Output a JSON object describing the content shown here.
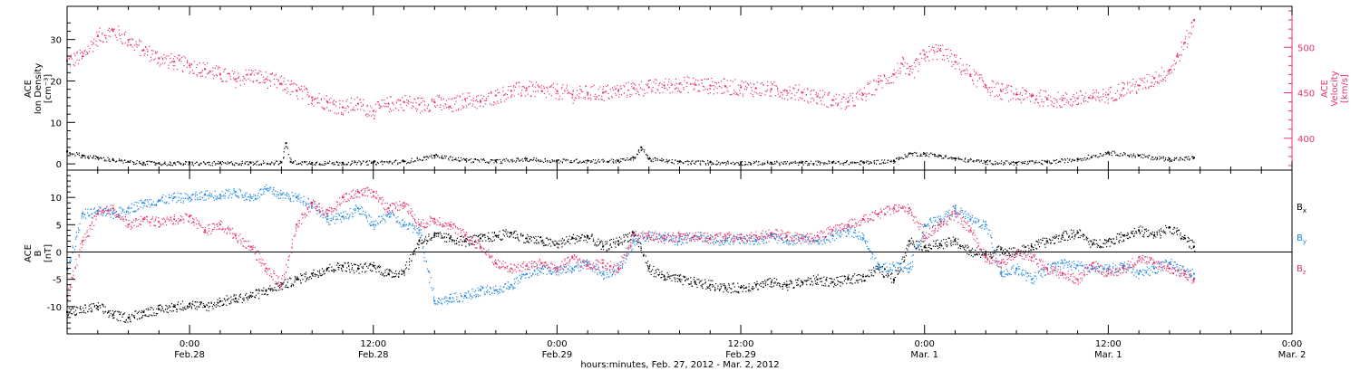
{
  "chart_data": [
    {
      "type": "scatter",
      "panel": "top",
      "title": "",
      "x_axis": {
        "range_hours": [
          -8,
          72
        ],
        "ticks": [
          {
            "hour": 0,
            "label": "0:00",
            "sub": "Feb.28"
          },
          {
            "hour": 12,
            "label": "12:00",
            "sub": "Feb.28"
          },
          {
            "hour": 24,
            "label": "0:00",
            "sub": "Feb.29"
          },
          {
            "hour": 36,
            "label": "12:00",
            "sub": "Feb.29"
          },
          {
            "hour": 48,
            "label": "0:00",
            "sub": "Mar. 1"
          },
          {
            "hour": 60,
            "label": "12:00",
            "sub": "Mar. 1"
          },
          {
            "hour": 72,
            "label": "0:00",
            "sub": "Mar. 2"
          }
        ],
        "label": "hours:minutes, Feb. 27, 2012 - Mar.  2, 2012"
      },
      "left_axis": {
        "label_lines": [
          "ACE",
          "Ion Density",
          "[cm⁻³]"
        ],
        "ylim": [
          -1.5,
          38
        ],
        "ticks": [
          0,
          10,
          20,
          30
        ],
        "color": "#000000"
      },
      "right_axis": {
        "label_lines": [
          "ACE",
          "Velocity",
          "[km/s]"
        ],
        "ylim": [
          365,
          545
        ],
        "ticks": [
          400,
          450,
          500
        ],
        "color": "#e8336b"
      },
      "series": [
        {
          "key": "velocity",
          "axis": "right",
          "color": "#e8336b",
          "x": [
            -8,
            -7,
            -6,
            -5,
            -4,
            -3,
            -2,
            -1,
            0,
            1,
            2,
            3,
            4,
            5,
            6,
            7,
            8,
            9,
            10,
            11,
            12,
            13,
            14,
            15,
            16,
            17,
            18,
            19,
            20,
            21,
            22,
            23,
            24,
            25,
            26,
            27,
            28,
            29,
            30,
            31,
            32,
            33,
            34,
            35,
            36,
            37,
            38,
            39,
            40,
            41,
            42,
            43,
            44,
            45,
            46,
            46.5,
            47,
            48,
            49,
            50,
            51,
            52,
            53,
            54,
            55,
            56,
            57,
            58,
            59,
            60,
            61,
            62,
            63,
            64,
            64.5,
            65,
            65.6
          ],
          "y": [
            485,
            490,
            512,
            518,
            508,
            497,
            488,
            484,
            480,
            476,
            470,
            465,
            470,
            465,
            460,
            452,
            445,
            440,
            434,
            438,
            430,
            438,
            440,
            437,
            440,
            435,
            443,
            440,
            447,
            452,
            455,
            452,
            452,
            448,
            450,
            450,
            452,
            455,
            456,
            458,
            460,
            459,
            458,
            457,
            456,
            455,
            454,
            452,
            450,
            446,
            442,
            440,
            448,
            462,
            470,
            482,
            470,
            492,
            497,
            484,
            470,
            458,
            452,
            448,
            446,
            444,
            442,
            444,
            445,
            448,
            455,
            458,
            466,
            475,
            490,
            505,
            530
          ]
        },
        {
          "key": "density",
          "axis": "left",
          "color": "#000000",
          "x": [
            -8,
            -7,
            -6,
            -5,
            -4,
            -3,
            -2,
            -1,
            0,
            2,
            4,
            6,
            6.3,
            6.6,
            8,
            10,
            12,
            14,
            16,
            18,
            20,
            22,
            24,
            26,
            28,
            29,
            29.5,
            30,
            32,
            34,
            36,
            38,
            40,
            42,
            44,
            46,
            47,
            48,
            49,
            50,
            52,
            54,
            56,
            58,
            60,
            62,
            64,
            65.6
          ],
          "y": [
            3,
            2,
            1.5,
            1,
            0.5,
            0.3,
            0.2,
            0.2,
            0.2,
            0.2,
            0.3,
            0.4,
            5,
            0.5,
            0.3,
            0.3,
            0.4,
            0.6,
            2,
            1,
            0.7,
            1.2,
            0.8,
            0.8,
            0.8,
            1.5,
            4,
            1.2,
            0.5,
            0.4,
            0.3,
            0.3,
            0.3,
            0.4,
            0.4,
            0.8,
            2.5,
            2.5,
            2,
            1.3,
            0.5,
            0.3,
            0.5,
            1.2,
            2.8,
            2,
            1.2,
            1.5
          ]
        }
      ]
    },
    {
      "type": "scatter",
      "panel": "bottom",
      "title": "",
      "x_axis": {
        "range_hours": [
          -8,
          72
        ],
        "ticks": [
          {
            "hour": 0,
            "label": "0:00",
            "sub": "Feb.28"
          },
          {
            "hour": 12,
            "label": "12:00",
            "sub": "Feb.28"
          },
          {
            "hour": 24,
            "label": "0:00",
            "sub": "Feb.29"
          },
          {
            "hour": 36,
            "label": "12:00",
            "sub": "Feb.29"
          },
          {
            "hour": 48,
            "label": "0:00",
            "sub": "Mar. 1"
          },
          {
            "hour": 60,
            "label": "12:00",
            "sub": "Mar. 1"
          },
          {
            "hour": 72,
            "label": "0:00",
            "sub": "Mar. 2"
          }
        ]
      },
      "left_axis": {
        "label_lines": [
          "ACE",
          "B",
          "[nT]"
        ],
        "ylim": [
          -15,
          15
        ],
        "ticks": [
          -10,
          -5,
          0,
          5,
          10
        ]
      },
      "zero_line": true,
      "series": [
        {
          "key": "Bx",
          "legend": "B",
          "sub": "x",
          "color": "#000000",
          "x": [
            -8,
            -6,
            -5,
            -4,
            -3,
            -2,
            -1,
            0,
            1,
            2,
            3,
            4,
            5,
            6,
            7,
            8,
            9,
            10,
            11,
            12,
            13,
            14,
            15,
            16,
            17,
            18,
            19,
            20,
            21,
            22,
            23,
            24,
            25,
            26,
            27,
            28,
            29,
            30,
            31,
            32,
            33,
            34,
            35,
            36,
            37,
            38,
            39,
            40,
            41,
            42,
            43,
            44,
            45,
            46,
            47,
            48,
            49,
            50,
            51,
            52,
            53,
            54,
            55,
            56,
            57,
            58,
            59,
            60,
            61,
            62,
            63,
            64,
            65,
            65.6
          ],
          "y": [
            -11,
            -10,
            -11.5,
            -12,
            -11,
            -10.5,
            -10,
            -9.5,
            -10,
            -9,
            -8.5,
            -8,
            -7,
            -6,
            -5,
            -4,
            -3,
            -2.5,
            -3,
            -2.5,
            -4,
            -3.5,
            2,
            3,
            2.5,
            2,
            2.5,
            3,
            3.5,
            2.5,
            2,
            1.5,
            2.5,
            2.8,
            1,
            2,
            3.5,
            -3,
            -4.5,
            -5,
            -5.5,
            -6,
            -6.5,
            -6.5,
            -6,
            -5.5,
            -6,
            -5.5,
            -5,
            -5.5,
            -5,
            -4.5,
            -3,
            -5,
            2,
            1,
            1.5,
            2,
            0,
            -0.5,
            0.5,
            0,
            1,
            2,
            3,
            3.5,
            1.5,
            2,
            3,
            4,
            3,
            4.5,
            2.5,
            1
          ]
        },
        {
          "key": "By",
          "legend": "B",
          "sub": "y",
          "color": "#1e88e5",
          "x": [
            -8,
            -7,
            -6,
            -5,
            -4,
            -3,
            -2,
            -1,
            0,
            1,
            2,
            3,
            4,
            5,
            6,
            7,
            8,
            9,
            10,
            11,
            12,
            13,
            14,
            15,
            16,
            17,
            18,
            19,
            20,
            21,
            22,
            23,
            24,
            25,
            26,
            27,
            28,
            29,
            30,
            31,
            32,
            33,
            34,
            35,
            36,
            37,
            38,
            39,
            40,
            41,
            42,
            43,
            44,
            45,
            46,
            47,
            48,
            49,
            50,
            51,
            52,
            53,
            54,
            55,
            56,
            57,
            58,
            59,
            60,
            61,
            62,
            63,
            64,
            65,
            65.6
          ],
          "y": [
            -3,
            7,
            7.5,
            7,
            8,
            9,
            9.5,
            10,
            10,
            10.5,
            10.5,
            11,
            10,
            11.5,
            10.5,
            10,
            9,
            6,
            6.5,
            8,
            5,
            7,
            5,
            4,
            -9,
            -8.5,
            -8,
            -7,
            -7,
            -6,
            -4,
            -3,
            -3.5,
            -3,
            -2,
            -4,
            -3,
            2,
            3,
            3,
            2,
            3,
            2.5,
            2,
            2.5,
            2,
            3,
            2,
            2.5,
            2,
            3,
            4,
            2.5,
            -3,
            -2.5,
            -3,
            5,
            6,
            8,
            6,
            5,
            -4,
            -3,
            -5,
            -3,
            -2,
            -2.5,
            -3,
            -3,
            -2.5,
            -4,
            -3,
            -2,
            -3.5,
            -4
          ]
        },
        {
          "key": "Bz",
          "legend": "B",
          "sub": "z",
          "color": "#e8336b",
          "x": [
            -8,
            -7,
            -6,
            -5,
            -4,
            -3,
            -2,
            -1,
            0,
            1,
            2,
            3,
            4,
            5,
            6,
            7,
            8,
            9,
            10,
            11,
            12,
            13,
            14,
            15,
            16,
            17,
            18,
            19,
            20,
            21,
            22,
            23,
            24,
            25,
            26,
            27,
            28,
            29,
            30,
            31,
            32,
            33,
            34,
            35,
            36,
            37,
            38,
            39,
            40,
            41,
            42,
            43,
            44,
            45,
            46,
            47,
            48,
            49,
            50,
            51,
            52,
            53,
            54,
            55,
            56,
            57,
            58,
            59,
            60,
            61,
            62,
            63,
            64,
            65,
            65.6
          ],
          "y": [
            -8,
            2,
            7,
            8,
            5,
            6,
            5.5,
            6,
            6.5,
            4,
            5,
            3,
            1,
            -3,
            -6,
            5,
            9,
            7,
            10,
            11,
            11,
            8,
            9,
            5,
            6,
            5,
            3,
            1,
            -2,
            -3,
            -2.5,
            -2,
            -3,
            -1,
            -2.5,
            -2,
            -3,
            3,
            3,
            2.5,
            3,
            3,
            2.5,
            3,
            2.5,
            3,
            3.5,
            3,
            2.5,
            3,
            4,
            5,
            6,
            7,
            8,
            8,
            3,
            5,
            7,
            4,
            -1,
            -2,
            0,
            -1,
            -3,
            -4,
            -5,
            -2,
            -4,
            -3,
            -1,
            -2,
            -3,
            -4,
            -5
          ]
        }
      ]
    }
  ]
}
